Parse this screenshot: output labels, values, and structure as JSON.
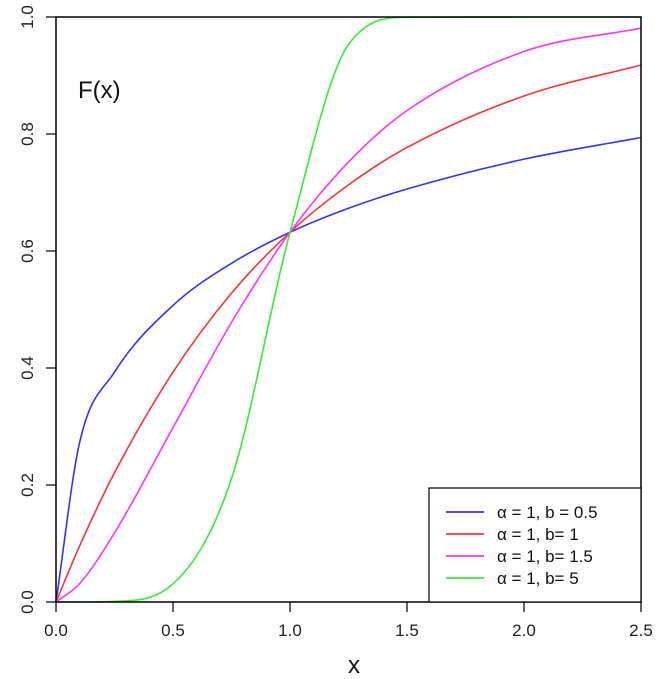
{
  "chart_data": {
    "type": "line",
    "title": "",
    "annotation": "F(x)",
    "xlabel": "x",
    "ylabel": "",
    "xlim": [
      0,
      2.5
    ],
    "ylim": [
      0,
      1
    ],
    "x_ticks": [
      "0.0",
      "0.5",
      "1.0",
      "1.5",
      "2.0",
      "2.5"
    ],
    "y_ticks": [
      "0.0",
      "0.2",
      "0.4",
      "0.6",
      "0.8",
      "1.0"
    ],
    "grid": false,
    "legend_position": "bottom-right",
    "x": [
      0,
      0.1,
      0.25,
      0.5,
      0.75,
      1.0,
      1.25,
      1.5,
      2.0,
      2.5
    ],
    "series": [
      {
        "name": "α = 1,  b = 0.5",
        "color": "#3333ff",
        "values": [
          0,
          0.271,
          0.393,
          0.507,
          0.579,
          0.632,
          0.673,
          0.706,
          0.757,
          0.794
        ]
      },
      {
        "name": "α = 1,  b= 1",
        "color": "#ff3333",
        "values": [
          0,
          0.095,
          0.221,
          0.393,
          0.528,
          0.632,
          0.713,
          0.777,
          0.865,
          0.918
        ]
      },
      {
        "name": "α = 1,  b= 1.5",
        "color": "#ff33ff",
        "values": [
          0,
          0.031,
          0.118,
          0.298,
          0.478,
          0.632,
          0.752,
          0.84,
          0.941,
          0.981
        ]
      },
      {
        "name": "α = 1,  b= 5",
        "color": "#33ee33",
        "values": [
          0,
          1e-05,
          0.001,
          0.031,
          0.211,
          0.632,
          0.953,
          0.9995,
          1.0,
          1.0
        ]
      }
    ]
  }
}
